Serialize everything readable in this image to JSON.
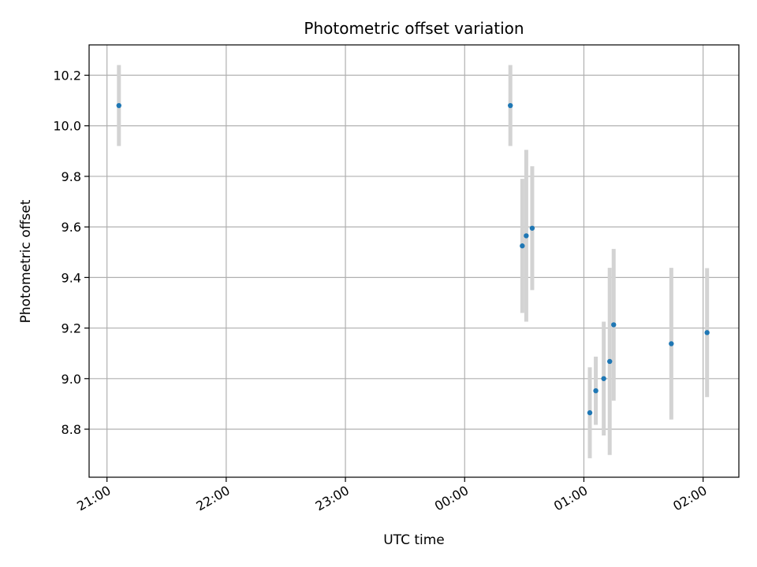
{
  "chart_data": {
    "type": "scatter",
    "title": "Photometric offset variation",
    "xlabel": "UTC time",
    "ylabel": "Photometric offset",
    "x_ticks": [
      "21:00",
      "22:00",
      "23:00",
      "00:00",
      "01:00",
      "02:00"
    ],
    "x_tick_values_hours": [
      21,
      22,
      23,
      24,
      25,
      26
    ],
    "xlim_hours": [
      20.85,
      26.3
    ],
    "y_ticks": [
      "8.8",
      "9.0",
      "9.2",
      "9.4",
      "9.6",
      "9.8",
      "10.0",
      "10.2"
    ],
    "y_tick_values": [
      8.8,
      9.0,
      9.2,
      9.4,
      9.6,
      9.8,
      10.0,
      10.2
    ],
    "ylim": [
      8.61,
      10.32
    ],
    "grid": true,
    "colors": {
      "marker": "#1f77b4",
      "errorbar": "#d3d3d3",
      "grid": "#b0b0b0"
    },
    "series": [
      {
        "points": [
          {
            "time": "21:06",
            "y": 10.08,
            "err": 0.16
          },
          {
            "time": "00:23",
            "y": 10.08,
            "err": 0.16
          },
          {
            "time": "00:29",
            "y": 9.525,
            "err": 0.265
          },
          {
            "time": "00:31",
            "y": 9.565,
            "err": 0.34
          },
          {
            "time": "00:34",
            "y": 9.595,
            "err": 0.245
          },
          {
            "time": "01:03",
            "y": 8.865,
            "err": 0.18
          },
          {
            "time": "01:06",
            "y": 8.952,
            "err": 0.135
          },
          {
            "time": "01:10",
            "y": 9.0,
            "err": 0.225
          },
          {
            "time": "01:13",
            "y": 9.068,
            "err": 0.37
          },
          {
            "time": "01:15",
            "y": 9.213,
            "err": 0.3
          },
          {
            "time": "01:44",
            "y": 9.138,
            "err": 0.3
          },
          {
            "time": "02:02",
            "y": 9.182,
            "err": 0.255
          }
        ]
      }
    ]
  }
}
